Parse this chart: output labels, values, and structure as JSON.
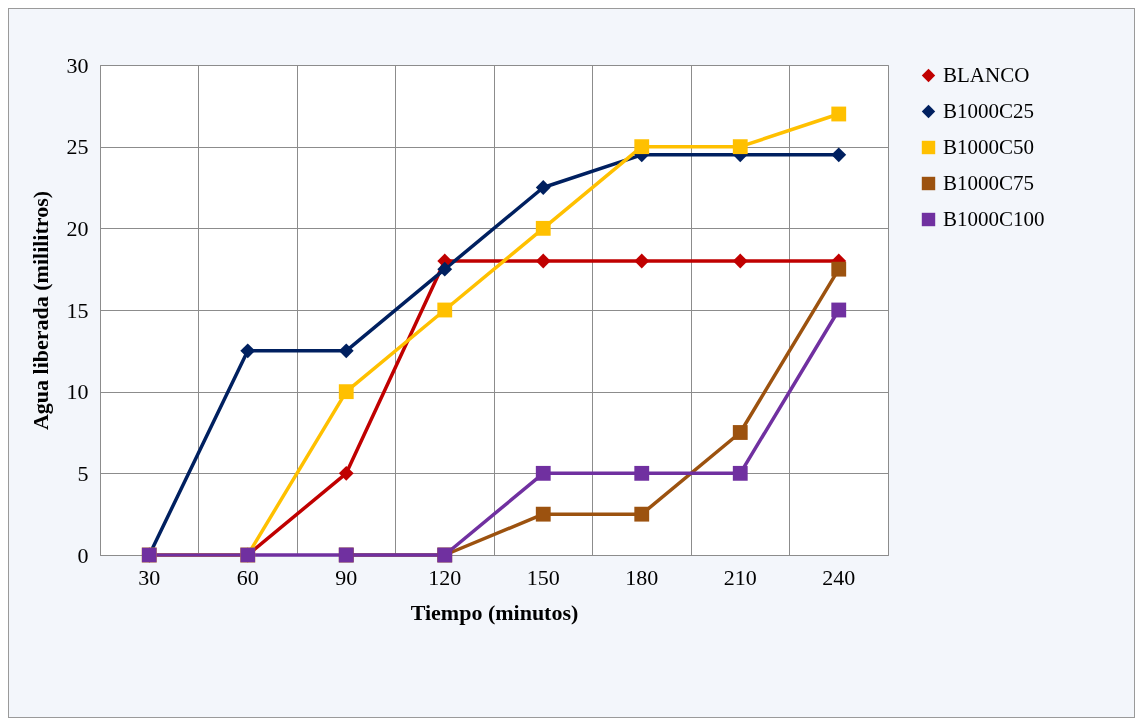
{
  "chart_data": {
    "type": "line",
    "xlabel": "Tiempo (minutos)",
    "ylabel": "Agua liberada (mililitros)",
    "categories": [
      "30",
      "60",
      "90",
      "120",
      "150",
      "180",
      "210",
      "240"
    ],
    "series": [
      {
        "name": "BLANCO",
        "color": "#c00000",
        "marker": "diamond",
        "values": [
          0,
          0,
          5,
          18,
          18,
          18,
          18,
          18
        ]
      },
      {
        "name": "B1000C25",
        "color": "#002060",
        "marker": "diamond",
        "values": [
          0,
          12.5,
          12.5,
          17.5,
          22.5,
          24.5,
          24.5,
          24.5
        ]
      },
      {
        "name": "B1000C50",
        "color": "#ffc000",
        "marker": "square",
        "values": [
          0,
          0,
          10,
          15,
          20,
          25,
          25,
          27
        ]
      },
      {
        "name": "B1000C75",
        "color": "#9c520f",
        "marker": "square",
        "values": [
          null,
          null,
          0,
          0,
          2.5,
          2.5,
          7.5,
          17.5
        ]
      },
      {
        "name": "B1000C100",
        "color": "#7030a0",
        "marker": "square",
        "values": [
          0,
          0,
          0,
          0,
          5,
          5,
          5,
          15
        ]
      }
    ],
    "ylim": [
      0,
      30
    ],
    "yticks": [
      0,
      5,
      10,
      15,
      20,
      25,
      30
    ],
    "grid": true,
    "legend": "right"
  }
}
